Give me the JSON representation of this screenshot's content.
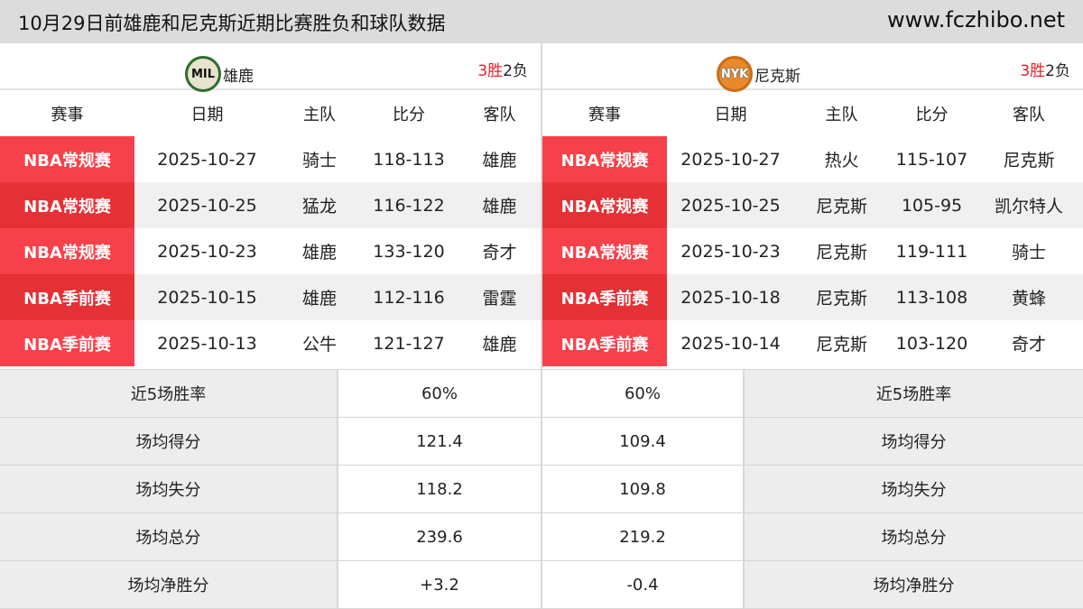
{
  "title": "10月29日前雄鹿和尼克斯近期比赛胜负和球队数据",
  "site": "www.fczhibo.net",
  "headers": [
    "赛事",
    "日期",
    "主队",
    "比分",
    "客队"
  ],
  "teams": [
    {
      "name": "雄鹿",
      "logo": "MIL",
      "wins": "3胜",
      "losses": "2负",
      "games": [
        [
          "NBA常规赛",
          "2025-10-27",
          "骑士",
          "118-113",
          "雄鹿"
        ],
        [
          "NBA常规赛",
          "2025-10-25",
          "猛龙",
          "116-122",
          "雄鹿"
        ],
        [
          "NBA常规赛",
          "2025-10-23",
          "雄鹿",
          "133-120",
          "奇才"
        ],
        [
          "NBA季前赛",
          "2025-10-15",
          "雄鹿",
          "112-116",
          "雷霆"
        ],
        [
          "NBA季前赛",
          "2025-10-13",
          "公牛",
          "121-127",
          "雄鹿"
        ]
      ]
    },
    {
      "name": "尼克斯",
      "logo": "NYK",
      "wins": "3胜",
      "losses": "2负",
      "games": [
        [
          "NBA常规赛",
          "2025-10-27",
          "热火",
          "115-107",
          "尼克斯"
        ],
        [
          "NBA常规赛",
          "2025-10-25",
          "尼克斯",
          "105-95",
          "凯尔特人"
        ],
        [
          "NBA常规赛",
          "2025-10-23",
          "尼克斯",
          "119-111",
          "骑士"
        ],
        [
          "NBA季前赛",
          "2025-10-18",
          "尼克斯",
          "113-108",
          "黄蜂"
        ],
        [
          "NBA季前赛",
          "2025-10-14",
          "尼克斯",
          "103-120",
          "奇才"
        ]
      ]
    }
  ],
  "stats": [
    {
      "label": "近5场胜率",
      "home": "60%",
      "away": "60%"
    },
    {
      "label": "场均得分",
      "home": "121.4",
      "away": "109.4"
    },
    {
      "label": "场均失分",
      "home": "118.2",
      "away": "109.8"
    },
    {
      "label": "场均总分",
      "home": "239.6",
      "away": "219.2"
    },
    {
      "label": "场均净胜分",
      "home": "+3.2",
      "away": "-0.4"
    }
  ],
  "colors": {
    "regular": "#f7414a",
    "alt": "#e53035",
    "win": "#e8202a"
  }
}
